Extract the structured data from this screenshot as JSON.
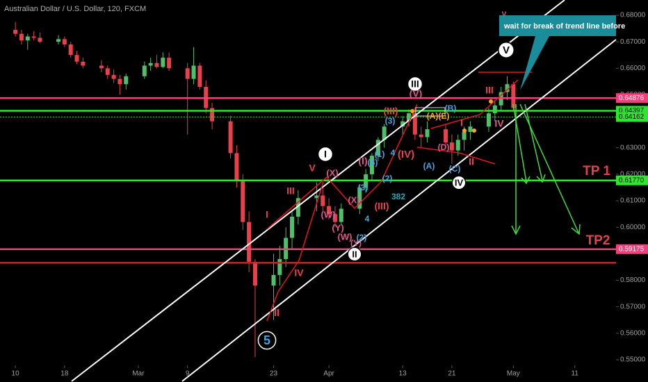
{
  "chart_data": {
    "type": "candlestick",
    "title": "Australian Dollar / U.S. Dollar, 120, FXCM",
    "up_color": "#4fbf6a",
    "down_color": "#e8414b",
    "grid": false,
    "xlim": [
      -2.5,
      97.7
    ],
    "ylim": [
      0.55,
      0.68
    ],
    "xticks": [
      {
        "value": 0,
        "label": "10"
      },
      {
        "value": 8,
        "label": "18"
      },
      {
        "value": 20,
        "label": "Mar"
      },
      {
        "value": 28,
        "label": "9"
      },
      {
        "value": 42,
        "label": "23"
      },
      {
        "value": 51,
        "label": "Apr"
      },
      {
        "value": 63,
        "label": "13"
      },
      {
        "value": 71,
        "label": "21"
      },
      {
        "value": 81,
        "label": "May"
      },
      {
        "value": 91,
        "label": "11"
      }
    ],
    "yticks": [
      {
        "value": 0.55,
        "label": "0.55000"
      },
      {
        "value": 0.56,
        "label": "0.56000"
      },
      {
        "value": 0.57,
        "label": "0.57000"
      },
      {
        "value": 0.58,
        "label": "0.58000"
      },
      {
        "value": 0.6,
        "label": "0.60000"
      },
      {
        "value": 0.61,
        "label": "0.61000"
      },
      {
        "value": 0.62,
        "label": "0.62000"
      },
      {
        "value": 0.63,
        "label": "0.63000"
      },
      {
        "value": 0.65,
        "label": "0.65000"
      },
      {
        "value": 0.66,
        "label": "0.66000"
      },
      {
        "value": 0.67,
        "label": "0.67000"
      },
      {
        "value": 0.68,
        "label": "0.68000"
      }
    ],
    "x": [
      0,
      1,
      2,
      3,
      4,
      7,
      8,
      9,
      10,
      11,
      14,
      15,
      16,
      17,
      18,
      21,
      22,
      23,
      24,
      25,
      28,
      29,
      30,
      31,
      32,
      35,
      36,
      37,
      38,
      39,
      42,
      43,
      44,
      45,
      46,
      49,
      50,
      51,
      52,
      53,
      56,
      57,
      58,
      59,
      60,
      63,
      64,
      65,
      66,
      67,
      70,
      71,
      72,
      73,
      74,
      77,
      78,
      79,
      80,
      81
    ],
    "open": [
      0.6745,
      0.673,
      0.6705,
      0.672,
      0.6715,
      0.67,
      0.671,
      0.669,
      0.665,
      0.6625,
      0.661,
      0.66,
      0.6575,
      0.656,
      0.654,
      0.657,
      0.661,
      0.662,
      0.6605,
      0.664,
      0.66,
      0.656,
      0.661,
      0.653,
      0.645,
      0.64,
      0.628,
      0.618,
      0.602,
      0.587,
      0.578,
      0.582,
      0.588,
      0.596,
      0.604,
      0.611,
      0.612,
      0.608,
      0.605,
      0.602,
      0.607,
      0.615,
      0.62,
      0.627,
      0.633,
      0.638,
      0.64,
      0.643,
      0.635,
      0.634,
      0.637,
      0.632,
      0.629,
      0.633,
      0.636,
      0.638,
      0.643,
      0.646,
      0.651,
      0.654
    ],
    "high": [
      0.6775,
      0.6745,
      0.673,
      0.674,
      0.6735,
      0.6725,
      0.672,
      0.67,
      0.6665,
      0.664,
      0.663,
      0.661,
      0.6595,
      0.6575,
      0.658,
      0.6625,
      0.664,
      0.665,
      0.666,
      0.666,
      0.662,
      0.668,
      0.662,
      0.6555,
      0.647,
      0.642,
      0.631,
      0.62,
      0.606,
      0.588,
      0.59,
      0.593,
      0.6,
      0.606,
      0.614,
      0.617,
      0.615,
      0.611,
      0.608,
      0.609,
      0.616,
      0.622,
      0.628,
      0.634,
      0.639,
      0.642,
      0.6445,
      0.644,
      0.638,
      0.64,
      0.639,
      0.635,
      0.635,
      0.638,
      0.64,
      0.645,
      0.648,
      0.653,
      0.657,
      0.655
    ],
    "low": [
      0.672,
      0.669,
      0.667,
      0.6705,
      0.6695,
      0.669,
      0.668,
      0.664,
      0.6615,
      0.66,
      0.6585,
      0.656,
      0.6545,
      0.65,
      0.652,
      0.656,
      0.659,
      0.66,
      0.66,
      0.659,
      0.635,
      0.654,
      0.652,
      0.643,
      0.637,
      0.626,
      0.615,
      0.599,
      0.583,
      0.551,
      0.565,
      0.578,
      0.585,
      0.592,
      0.601,
      0.606,
      0.606,
      0.603,
      0.6,
      0.601,
      0.605,
      0.613,
      0.618,
      0.625,
      0.63,
      0.635,
      0.638,
      0.633,
      0.63,
      0.632,
      0.63,
      0.624,
      0.627,
      0.629,
      0.633,
      0.636,
      0.64,
      0.644,
      0.648,
      0.644
    ],
    "close": [
      0.673,
      0.6705,
      0.672,
      0.6715,
      0.67,
      0.671,
      0.669,
      0.665,
      0.6625,
      0.661,
      0.66,
      0.6575,
      0.656,
      0.654,
      0.657,
      0.661,
      0.662,
      0.6605,
      0.664,
      0.66,
      0.656,
      0.661,
      0.653,
      0.645,
      0.64,
      0.628,
      0.618,
      0.602,
      0.587,
      0.578,
      0.582,
      0.588,
      0.596,
      0.604,
      0.611,
      0.612,
      0.608,
      0.605,
      0.602,
      0.607,
      0.615,
      0.62,
      0.627,
      0.633,
      0.638,
      0.64,
      0.643,
      0.635,
      0.634,
      0.637,
      0.632,
      0.629,
      0.633,
      0.636,
      0.638,
      0.643,
      0.646,
      0.651,
      0.654,
      0.645
    ],
    "levels": [
      {
        "value": 0.64876,
        "label": "0.64876",
        "color": "#f2407c"
      },
      {
        "value": 0.64397,
        "label": "0.64397",
        "color": "#2ee62e"
      },
      {
        "value": 0.64162,
        "label": "0.64162",
        "color": "#2ee62e",
        "dotted": true
      },
      {
        "value": 0.6177,
        "label": "0.61770",
        "color": "#2ee62e"
      },
      {
        "value": 0.59175,
        "label": "0.59175",
        "color": "#f2407c"
      },
      {
        "value": 0.5866,
        "color": "#e8141f"
      }
    ],
    "annotations": [
      "wait for break of trend line before",
      "V",
      "III",
      "I",
      "IV",
      "II",
      "5",
      "III",
      "V",
      "(X)",
      "I",
      "IV",
      "II",
      "(W)",
      "(Y)",
      "(W)",
      "(X)",
      "(Y)",
      "(III)",
      "(I)",
      "(III)",
      "(IV)",
      "(V)",
      "III",
      "IV",
      "I",
      "II",
      "(D)",
      "(5)",
      "(1)",
      "(2)",
      "(3)",
      "4",
      "4",
      "(2)",
      "(A)",
      "(C)",
      "(B)",
      "(A)(E)",
      "382",
      "TP 1",
      "TP2",
      "V",
      "(3)"
    ]
  }
}
